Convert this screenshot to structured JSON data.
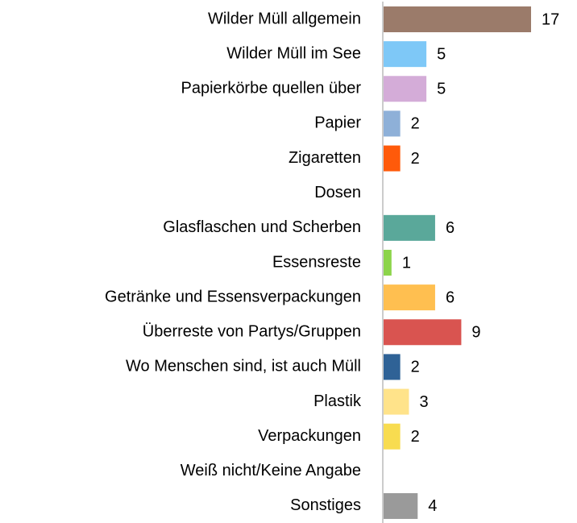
{
  "chart_data": {
    "type": "barh",
    "categories": [
      "Wilder Müll allgemein",
      "Wilder Müll im See",
      "Papierkörbe quellen über",
      "Papier",
      "Zigaretten",
      "Dosen",
      "Glasflaschen und Scherben",
      "Essensreste",
      "Getränke und Essensverpackungen",
      "Überreste von Partys/Gruppen",
      "Wo Menschen sind, ist auch Müll",
      "Plastik",
      "Verpackungen",
      "Weiß nicht/Keine Angabe",
      "Sonstiges"
    ],
    "values": [
      17,
      5,
      5,
      2,
      2,
      0,
      6,
      1,
      6,
      9,
      2,
      3,
      2,
      0,
      4
    ],
    "colors": [
      "#9b7b6a",
      "#7ec8f7",
      "#d4acd8",
      "#8eb0d8",
      "#ff5a0a",
      null,
      "#5aa89a",
      "#8cd44a",
      "#ffbf50",
      "#d95450",
      "#2f6296",
      "#ffe38a",
      "#f8dc50",
      null,
      "#9a9a9a"
    ]
  }
}
